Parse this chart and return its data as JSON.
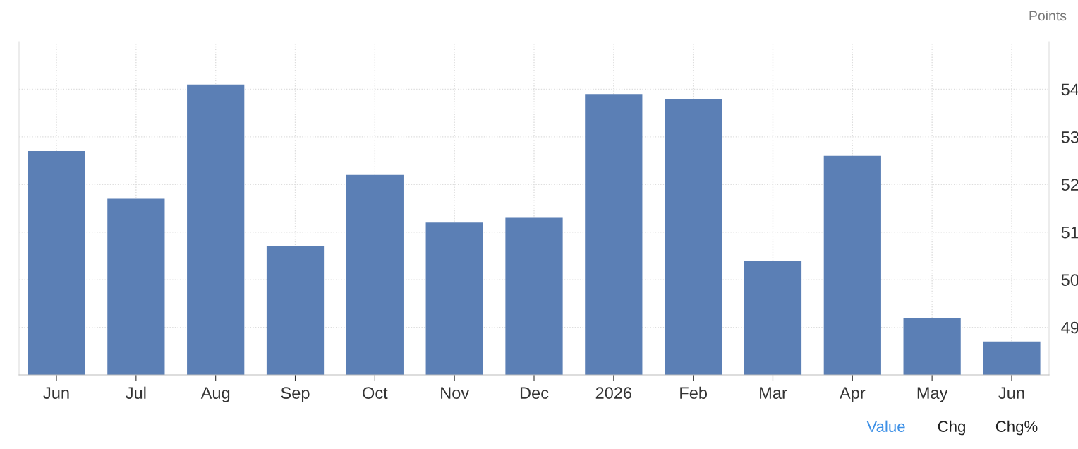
{
  "chart_data": {
    "type": "bar",
    "ylabel": "Points",
    "categories": [
      "Jun",
      "Jul",
      "Aug",
      "Sep",
      "Oct",
      "Nov",
      "Dec",
      "2026",
      "Feb",
      "Mar",
      "Apr",
      "May",
      "Jun"
    ],
    "values": [
      52.7,
      51.7,
      54.1,
      50.7,
      52.2,
      51.2,
      51.3,
      53.9,
      53.8,
      50.4,
      52.6,
      49.2,
      48.7
    ],
    "color": "#5b7fb5",
    "ylim": [
      48,
      55
    ],
    "yticks": [
      49,
      50,
      51,
      52,
      53,
      54
    ],
    "grid": true,
    "annotations": [
      "Value",
      "Chg",
      "Chg%"
    ]
  }
}
